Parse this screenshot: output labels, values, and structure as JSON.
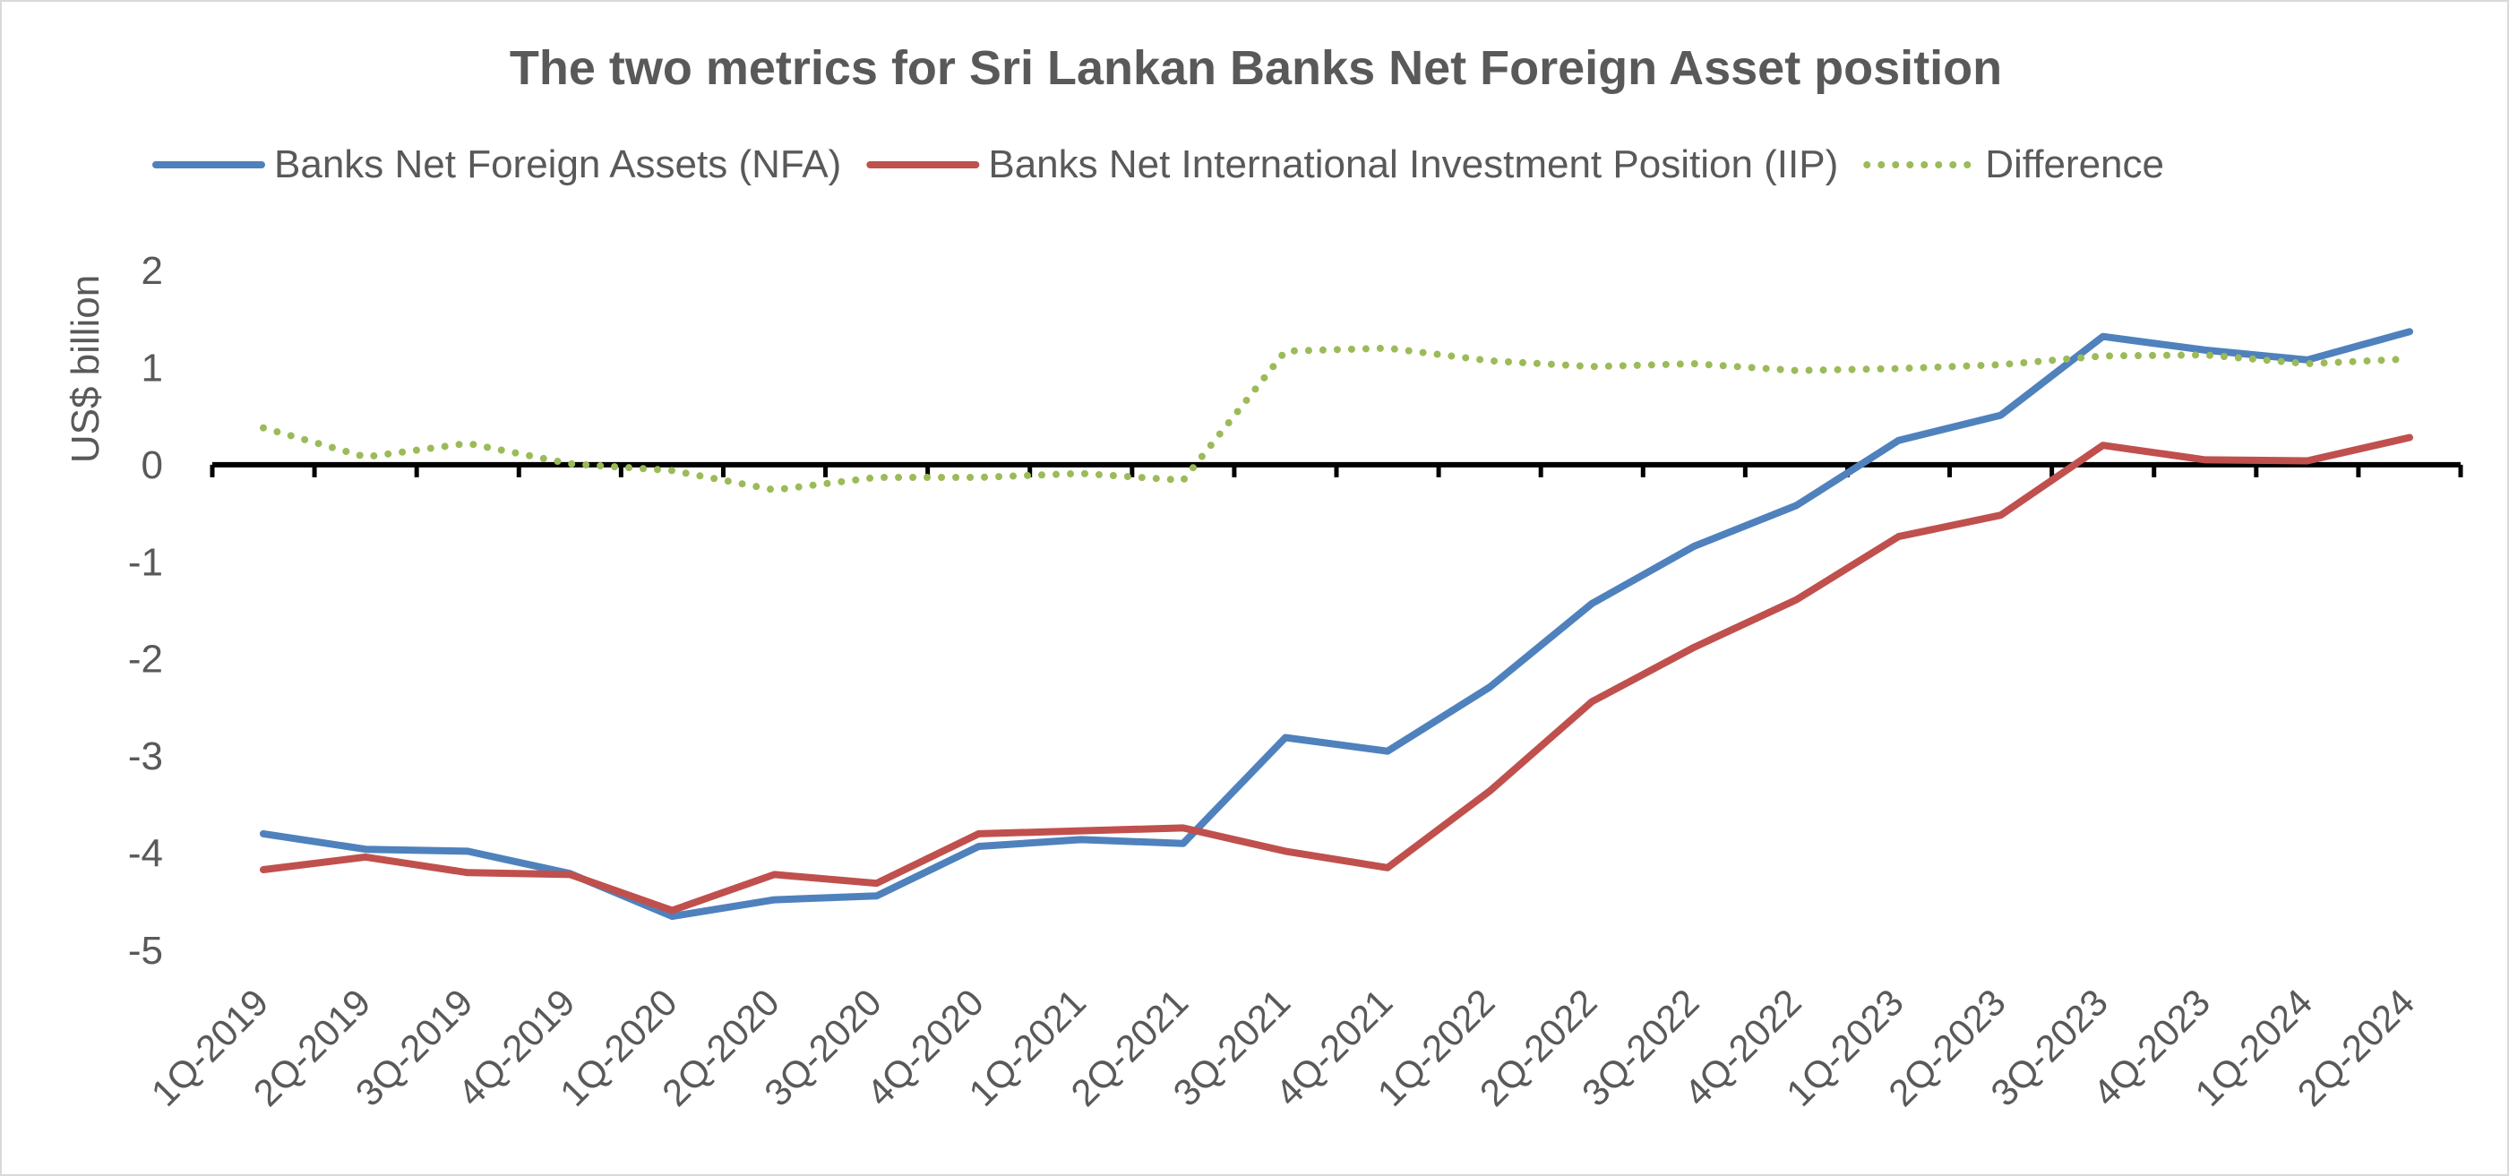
{
  "chart_data": {
    "type": "line",
    "title": "The two metrics for Sri Lankan Banks Net Foreign Asset position",
    "xlabel": "",
    "ylabel": "US$ billion",
    "ylim": [
      -5,
      2
    ],
    "yticks": [
      "2",
      "1",
      "0",
      "-1",
      "-2",
      "-3",
      "-4",
      "-5"
    ],
    "grid": false,
    "legend_position": "top",
    "categories": [
      "1Q-2019",
      "2Q-2019",
      "3Q-2019",
      "4Q-2019",
      "1Q-2020",
      "2Q-2020",
      "3Q-2020",
      "4Q-2020",
      "1Q-2021",
      "2Q-2021",
      "3Q-2021",
      "4Q-2021",
      "1Q-2022",
      "2Q-2022",
      "3Q-2022",
      "4Q-2022",
      "1Q-2023",
      "2Q-2023",
      "3Q-2023",
      "4Q-2023",
      "1Q-2024",
      "2Q-2024"
    ],
    "series": [
      {
        "name": "Banks Net Foreign Assets (NFA)",
        "color": "#4f81bd",
        "style": "solid",
        "values": [
          -3.8,
          -3.96,
          -3.98,
          -4.21,
          -4.65,
          -4.48,
          -4.44,
          -3.93,
          -3.86,
          -3.9,
          -2.81,
          -2.95,
          -2.29,
          -1.43,
          -0.84,
          -0.42,
          0.25,
          0.51,
          1.32,
          1.18,
          1.08,
          1.37
        ]
      },
      {
        "name": "Banks Net International Investment Position (IIP)",
        "color": "#c0504d",
        "style": "solid",
        "values": [
          -4.17,
          -4.04,
          -4.2,
          -4.22,
          -4.59,
          -4.22,
          -4.31,
          -3.8,
          -3.77,
          -3.74,
          -3.98,
          -4.15,
          -3.36,
          -2.44,
          -1.88,
          -1.39,
          -0.74,
          -0.52,
          0.2,
          0.05,
          0.04,
          0.28
        ]
      },
      {
        "name": "Difference",
        "color": "#9bbb59",
        "style": "dotted",
        "values": [
          0.38,
          0.08,
          0.22,
          0.01,
          -0.06,
          -0.26,
          -0.13,
          -0.13,
          -0.09,
          -0.16,
          1.17,
          1.2,
          1.07,
          1.01,
          1.04,
          0.97,
          0.99,
          1.03,
          1.12,
          1.13,
          1.04,
          1.09
        ]
      }
    ]
  }
}
